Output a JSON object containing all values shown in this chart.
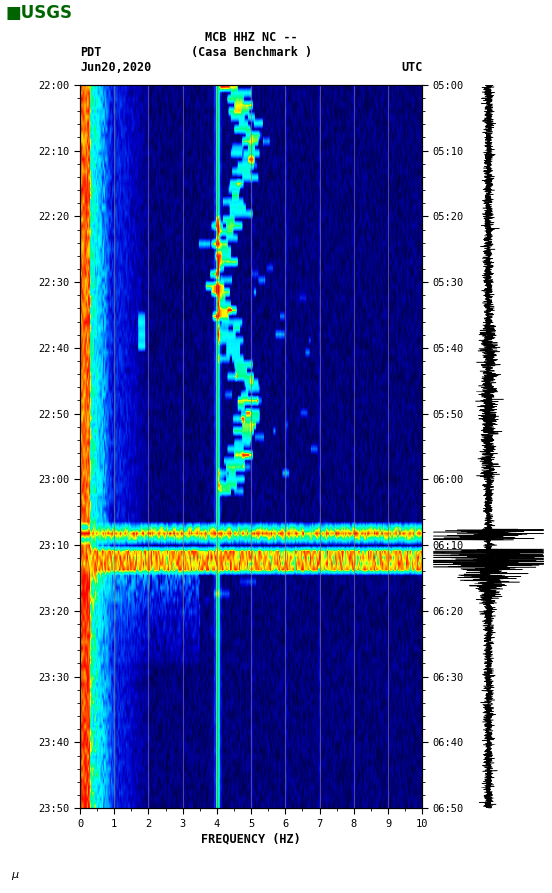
{
  "title_line1": "MCB HHZ NC --",
  "title_line2": "(Casa Benchmark )",
  "label_left": "PDT",
  "label_date": "Jun20,2020",
  "label_right": "UTC",
  "xlabel": "FREQUENCY (HZ)",
  "freq_min": 0,
  "freq_max": 10,
  "time_ticks_left": [
    "22:00",
    "22:10",
    "22:20",
    "22:30",
    "22:40",
    "22:50",
    "23:00",
    "23:10",
    "23:20",
    "23:30",
    "23:40",
    "23:50"
  ],
  "time_ticks_right": [
    "05:00",
    "05:10",
    "05:20",
    "05:30",
    "05:40",
    "05:50",
    "06:00",
    "06:10",
    "06:20",
    "06:30",
    "06:40",
    "06:50"
  ],
  "freq_ticks": [
    0,
    1,
    2,
    3,
    4,
    5,
    6,
    7,
    8,
    9,
    10
  ],
  "background_color": "#ffffff",
  "n_time": 120,
  "n_freq": 300,
  "eq_row1": 74,
  "eq_row2": 77,
  "gridline_color": "#8B7355",
  "gridline_positions": [
    1,
    2,
    3,
    4,
    5,
    6,
    7,
    8,
    9
  ],
  "waveform_color": "#000000",
  "usgs_color": "#006400",
  "footnote": "u"
}
